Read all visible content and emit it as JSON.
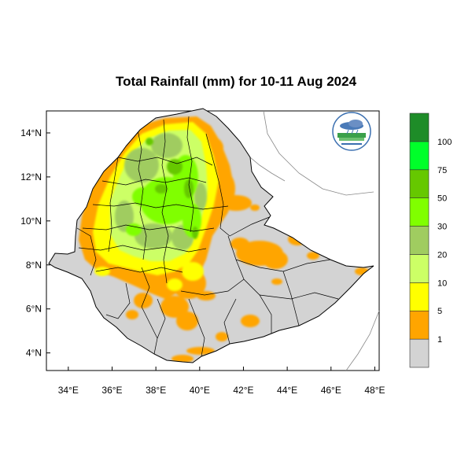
{
  "title": "Total Rainfall (mm) for 10-11 Aug 2024",
  "chart_data": {
    "type": "heatmap",
    "title": "Total Rainfall (mm) for 10-11 Aug 2024",
    "xlim": [
      33,
      48.2
    ],
    "ylim": [
      3.2,
      15
    ],
    "x_ticks": [
      {
        "value": 34,
        "label": "34°E"
      },
      {
        "value": 36,
        "label": "36°E"
      },
      {
        "value": 38,
        "label": "38°E"
      },
      {
        "value": 40,
        "label": "40°E"
      },
      {
        "value": 42,
        "label": "42°E"
      },
      {
        "value": 44,
        "label": "44°E"
      },
      {
        "value": 46,
        "label": "46°E"
      },
      {
        "value": 48,
        "label": "48°E"
      }
    ],
    "y_ticks": [
      {
        "value": 14,
        "label": "14°N"
      },
      {
        "value": 12,
        "label": "12°N"
      },
      {
        "value": 10,
        "label": "10°N"
      },
      {
        "value": 8,
        "label": "8°N"
      },
      {
        "value": 6,
        "label": "6°N"
      },
      {
        "value": 4,
        "label": "4°N"
      }
    ],
    "legend": {
      "placement": "right",
      "boundaries": [
        "1",
        "5",
        "10",
        "20",
        "30",
        "50",
        "75",
        "100"
      ],
      "colors": [
        "#d3d3d3",
        "#ffa500",
        "#ffff00",
        "#ccff66",
        "#a0cc60",
        "#80ff00",
        "#66c800",
        "#00ff2a",
        "#1e8c28"
      ]
    },
    "background_color": "#d3d3d3"
  }
}
